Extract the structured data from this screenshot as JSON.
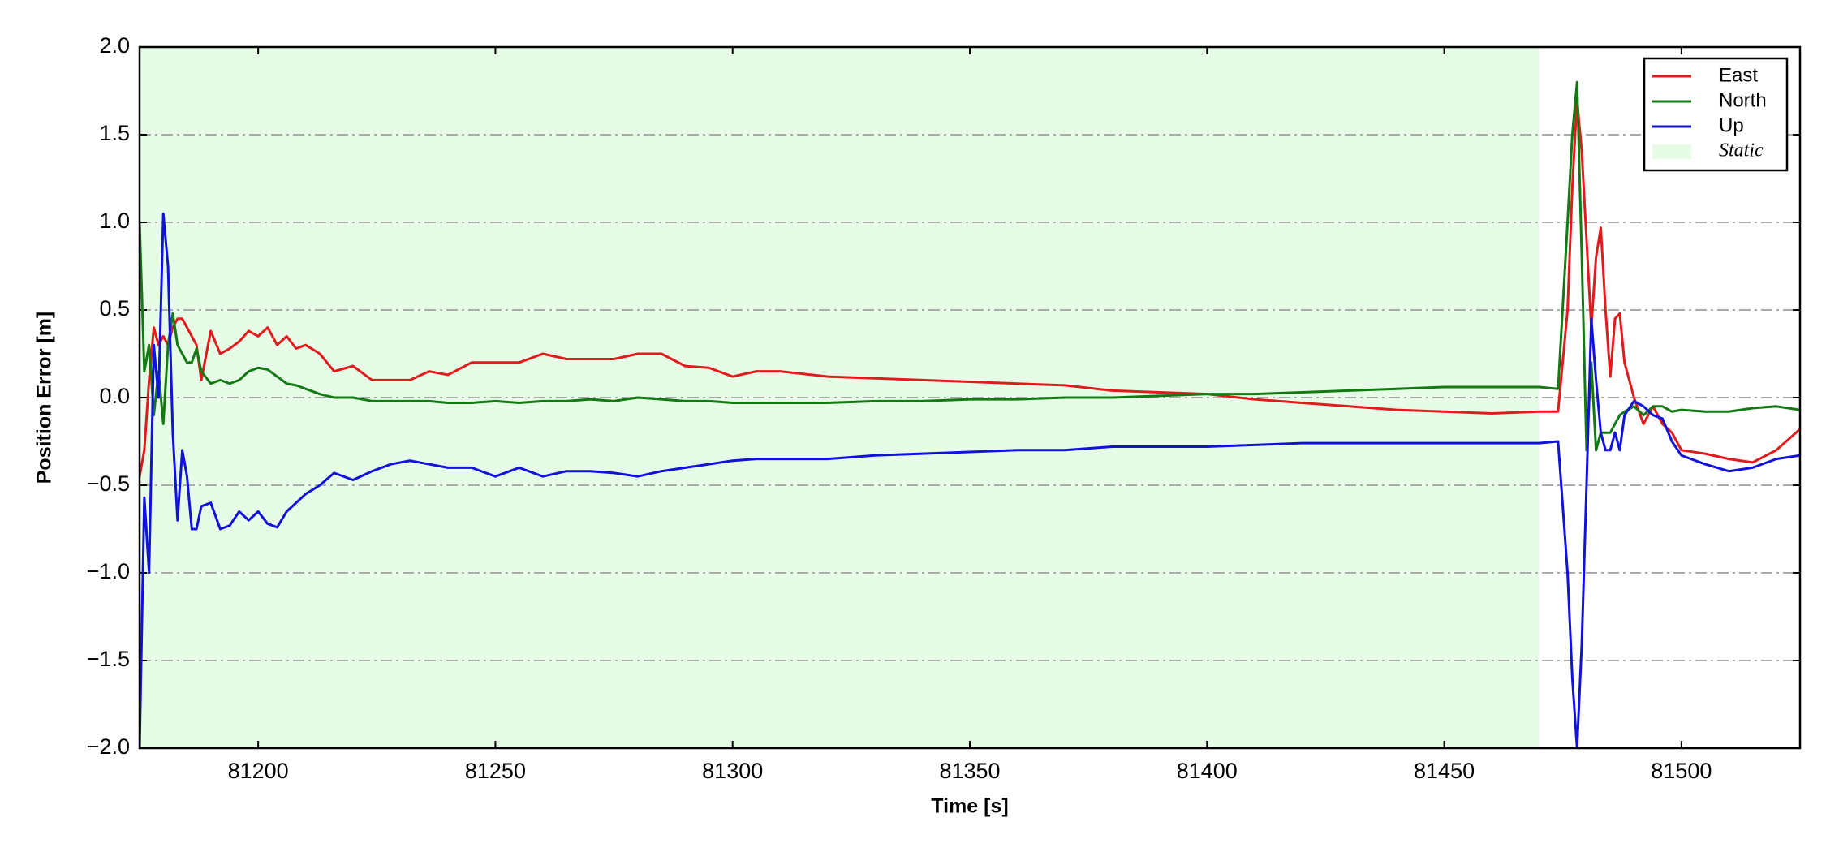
{
  "chart_data": {
    "type": "line",
    "xlabel": "Time [s]",
    "ylabel": "Position Error [m]",
    "x": [
      81175,
      81176,
      81177,
      81178,
      81179,
      81180,
      81181,
      81182,
      81183,
      81184,
      81185,
      81186,
      81187,
      81188,
      81190,
      81192,
      81194,
      81196,
      81198,
      81200,
      81202,
      81204,
      81206,
      81208,
      81210,
      81213,
      81216,
      81220,
      81224,
      81228,
      81232,
      81236,
      81240,
      81245,
      81250,
      81255,
      81260,
      81265,
      81270,
      81275,
      81280,
      81285,
      81290,
      81295,
      81300,
      81305,
      81310,
      81320,
      81330,
      81340,
      81350,
      81360,
      81370,
      81380,
      81390,
      81400,
      81410,
      81420,
      81430,
      81440,
      81450,
      81460,
      81470,
      81474,
      81476,
      81477,
      81478,
      81479,
      81480,
      81481,
      81482,
      81483,
      81484,
      81485,
      81486,
      81487,
      81488,
      81490,
      81492,
      81494,
      81496,
      81498,
      81500,
      81505,
      81510,
      81515,
      81520,
      81525
    ],
    "series": [
      {
        "name": "East",
        "color": "#e31a1c",
        "values": [
          -0.45,
          -0.3,
          0.1,
          0.4,
          0.3,
          0.35,
          0.3,
          0.4,
          0.45,
          0.45,
          0.4,
          0.35,
          0.3,
          0.1,
          0.38,
          0.25,
          0.28,
          0.32,
          0.38,
          0.35,
          0.4,
          0.3,
          0.35,
          0.28,
          0.3,
          0.25,
          0.15,
          0.18,
          0.1,
          0.1,
          0.1,
          0.15,
          0.13,
          0.2,
          0.2,
          0.2,
          0.25,
          0.22,
          0.22,
          0.22,
          0.25,
          0.25,
          0.18,
          0.17,
          0.12,
          0.15,
          0.15,
          0.12,
          0.11,
          0.1,
          0.09,
          0.08,
          0.07,
          0.04,
          0.03,
          0.02,
          -0.01,
          -0.03,
          -0.05,
          -0.07,
          -0.08,
          -0.09,
          -0.08,
          -0.08,
          0.5,
          1.2,
          1.7,
          1.4,
          0.9,
          0.4,
          0.8,
          0.97,
          0.5,
          0.12,
          0.45,
          0.48,
          0.2,
          0.0,
          -0.15,
          -0.05,
          -0.15,
          -0.2,
          -0.3,
          -0.32,
          -0.35,
          -0.37,
          -0.3,
          -0.18
        ]
      },
      {
        "name": "North",
        "color": "#137a13",
        "values": [
          1.0,
          0.15,
          0.3,
          -0.1,
          0.15,
          -0.15,
          0.3,
          0.48,
          0.3,
          0.25,
          0.2,
          0.2,
          0.28,
          0.15,
          0.08,
          0.1,
          0.08,
          0.1,
          0.15,
          0.17,
          0.16,
          0.12,
          0.08,
          0.07,
          0.05,
          0.02,
          0.0,
          0.0,
          -0.02,
          -0.02,
          -0.02,
          -0.02,
          -0.03,
          -0.03,
          -0.02,
          -0.03,
          -0.02,
          -0.02,
          -0.01,
          -0.02,
          0.0,
          -0.01,
          -0.02,
          -0.02,
          -0.03,
          -0.03,
          -0.03,
          -0.03,
          -0.02,
          -0.02,
          -0.01,
          -0.01,
          0.0,
          0.0,
          0.01,
          0.02,
          0.02,
          0.03,
          0.04,
          0.05,
          0.06,
          0.06,
          0.06,
          0.05,
          1.0,
          1.5,
          1.8,
          0.8,
          -0.3,
          0.2,
          -0.3,
          -0.2,
          -0.2,
          -0.2,
          -0.15,
          -0.1,
          -0.08,
          -0.05,
          -0.1,
          -0.05,
          -0.05,
          -0.08,
          -0.07,
          -0.08,
          -0.08,
          -0.06,
          -0.05,
          -0.07
        ]
      },
      {
        "name": "Up",
        "color": "#1111dd",
        "values": [
          -2.0,
          -0.57,
          -1.0,
          0.3,
          0.0,
          1.05,
          0.75,
          -0.2,
          -0.7,
          -0.3,
          -0.45,
          -0.75,
          -0.75,
          -0.62,
          -0.6,
          -0.75,
          -0.73,
          -0.65,
          -0.7,
          -0.65,
          -0.72,
          -0.74,
          -0.65,
          -0.6,
          -0.55,
          -0.5,
          -0.43,
          -0.47,
          -0.42,
          -0.38,
          -0.36,
          -0.38,
          -0.4,
          -0.4,
          -0.45,
          -0.4,
          -0.45,
          -0.42,
          -0.42,
          -0.43,
          -0.45,
          -0.42,
          -0.4,
          -0.38,
          -0.36,
          -0.35,
          -0.35,
          -0.35,
          -0.33,
          -0.32,
          -0.31,
          -0.3,
          -0.3,
          -0.28,
          -0.28,
          -0.28,
          -0.27,
          -0.26,
          -0.26,
          -0.26,
          -0.26,
          -0.26,
          -0.26,
          -0.25,
          -1.0,
          -1.6,
          -2.0,
          -1.4,
          -0.5,
          0.45,
          0.1,
          -0.2,
          -0.3,
          -0.3,
          -0.2,
          -0.3,
          -0.1,
          -0.02,
          -0.05,
          -0.1,
          -0.12,
          -0.25,
          -0.33,
          -0.38,
          -0.42,
          -0.4,
          -0.35,
          -0.33
        ]
      }
    ],
    "shaded": {
      "name": "Static",
      "x0": 81175,
      "x1": 81470,
      "color": "#e6fce6"
    },
    "xlim": [
      81175,
      81525
    ],
    "ylim": [
      -2,
      2
    ],
    "xticks": [
      81200,
      81250,
      81300,
      81350,
      81400,
      81450,
      81500
    ],
    "yticks": [
      {
        "value": -2,
        "label": "−2.0"
      },
      {
        "value": -1.5,
        "label": "−1.5"
      },
      {
        "value": -1,
        "label": "−1.0"
      },
      {
        "value": -0.5,
        "label": "−0.5"
      },
      {
        "value": 0,
        "label": "0.0"
      },
      {
        "value": 0.5,
        "label": "0.5"
      },
      {
        "value": 1,
        "label": "1.0"
      },
      {
        "value": 1.5,
        "label": "1.5"
      },
      {
        "value": 2,
        "label": "2.0"
      }
    ],
    "grid": true,
    "legend": "upper right"
  }
}
